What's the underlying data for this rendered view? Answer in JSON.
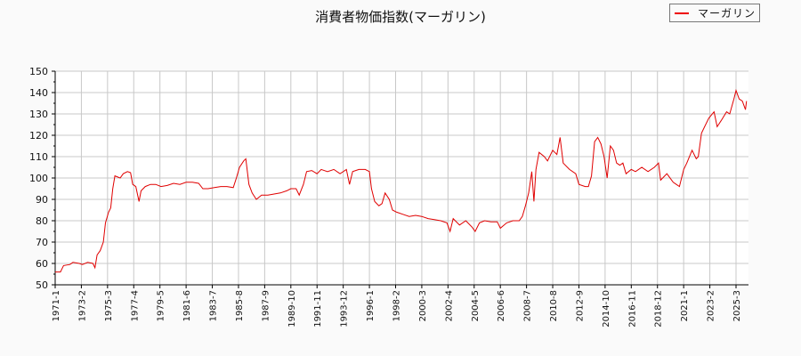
{
  "title": "消費者物価指数(マーガリン)",
  "legend": {
    "label": "マーガリン",
    "color": "#e00000"
  },
  "chart_data": {
    "type": "line",
    "title": "消費者物価指数(マーガリン)",
    "xlabel": "",
    "ylabel": "",
    "ylim": [
      50,
      150
    ],
    "yticks": [
      50,
      60,
      70,
      80,
      90,
      100,
      110,
      120,
      130,
      140,
      150
    ],
    "xtick_labels": [
      "1971-1",
      "1973-2",
      "1975-3",
      "1977-4",
      "1979-5",
      "1981-6",
      "1983-7",
      "1985-8",
      "1987-9",
      "1989-10",
      "1991-11",
      "1993-12",
      "1996-1",
      "1998-2",
      "2000-3",
      "2002-4",
      "2004-5",
      "2006-6",
      "2008-7",
      "2010-8",
      "2012-9",
      "2014-10",
      "2016-11",
      "2018-12",
      "2021-1",
      "2023-2",
      "2025-3"
    ],
    "grid": true,
    "legend_position": "top-right",
    "series": [
      {
        "name": "マーガリン",
        "color": "#e00000",
        "points": [
          [
            "1971-1",
            56
          ],
          [
            "1971-6",
            56
          ],
          [
            "1971-9",
            59
          ],
          [
            "1972-3",
            59.5
          ],
          [
            "1972-6",
            60.5
          ],
          [
            "1972-12",
            60
          ],
          [
            "1973-3",
            59.5
          ],
          [
            "1973-8",
            60.5
          ],
          [
            "1974-1",
            60
          ],
          [
            "1974-3",
            58
          ],
          [
            "1974-5",
            64
          ],
          [
            "1974-8",
            66
          ],
          [
            "1974-11",
            70
          ],
          [
            "1975-1",
            79
          ],
          [
            "1975-4",
            84
          ],
          [
            "1975-6",
            86
          ],
          [
            "1975-8",
            95
          ],
          [
            "1975-10",
            101
          ],
          [
            "1976-3",
            100
          ],
          [
            "1976-6",
            102
          ],
          [
            "1976-10",
            103
          ],
          [
            "1977-1",
            102.5
          ],
          [
            "1977-3",
            97
          ],
          [
            "1977-6",
            96
          ],
          [
            "1977-9",
            89
          ],
          [
            "1977-11",
            94
          ],
          [
            "1978-3",
            96
          ],
          [
            "1978-8",
            97
          ],
          [
            "1979-1",
            97
          ],
          [
            "1979-6",
            96
          ],
          [
            "1979-12",
            96.5
          ],
          [
            "1980-6",
            97.5
          ],
          [
            "1980-12",
            97
          ],
          [
            "1981-6",
            98
          ],
          [
            "1981-12",
            98
          ],
          [
            "1982-6",
            97.5
          ],
          [
            "1982-10",
            95
          ],
          [
            "1983-3",
            95
          ],
          [
            "1983-9",
            95.5
          ],
          [
            "1984-3",
            96
          ],
          [
            "1984-9",
            96
          ],
          [
            "1985-3",
            95.5
          ],
          [
            "1985-6",
            100
          ],
          [
            "1985-9",
            105
          ],
          [
            "1986-1",
            108
          ],
          [
            "1986-3",
            109
          ],
          [
            "1986-6",
            97
          ],
          [
            "1986-9",
            93
          ],
          [
            "1987-1",
            90
          ],
          [
            "1987-6",
            92
          ],
          [
            "1987-12",
            92
          ],
          [
            "1988-6",
            92.5
          ],
          [
            "1988-12",
            93
          ],
          [
            "1989-6",
            94
          ],
          [
            "1989-10",
            95
          ],
          [
            "1990-3",
            95
          ],
          [
            "1990-6",
            92
          ],
          [
            "1990-10",
            97
          ],
          [
            "1991-1",
            103
          ],
          [
            "1991-6",
            103.5
          ],
          [
            "1991-11",
            102
          ],
          [
            "1992-3",
            104
          ],
          [
            "1992-9",
            103
          ],
          [
            "1993-3",
            104
          ],
          [
            "1993-9",
            102
          ],
          [
            "1994-3",
            104
          ],
          [
            "1994-6",
            97
          ],
          [
            "1994-9",
            103
          ],
          [
            "1995-3",
            104
          ],
          [
            "1995-9",
            104
          ],
          [
            "1996-1",
            103
          ],
          [
            "1996-3",
            95
          ],
          [
            "1996-6",
            89
          ],
          [
            "1996-10",
            87
          ],
          [
            "1997-1",
            88
          ],
          [
            "1997-4",
            93
          ],
          [
            "1997-8",
            90
          ],
          [
            "1997-11",
            85
          ],
          [
            "1998-3",
            84
          ],
          [
            "1998-9",
            83
          ],
          [
            "1999-3",
            82
          ],
          [
            "1999-9",
            82.5
          ],
          [
            "2000-3",
            82
          ],
          [
            "2000-9",
            81
          ],
          [
            "2001-3",
            80.5
          ],
          [
            "2001-9",
            80
          ],
          [
            "2002-3",
            79
          ],
          [
            "2002-6",
            75
          ],
          [
            "2002-9",
            81
          ],
          [
            "2003-3",
            78
          ],
          [
            "2003-9",
            80
          ],
          [
            "2004-3",
            77
          ],
          [
            "2004-6",
            75
          ],
          [
            "2004-10",
            79
          ],
          [
            "2005-3",
            80
          ],
          [
            "2005-9",
            79.5
          ],
          [
            "2006-3",
            79.5
          ],
          [
            "2006-6",
            76.5
          ],
          [
            "2006-12",
            79
          ],
          [
            "2007-6",
            80
          ],
          [
            "2007-12",
            80
          ],
          [
            "2008-3",
            82
          ],
          [
            "2008-6",
            87
          ],
          [
            "2008-9",
            93
          ],
          [
            "2008-12",
            103
          ],
          [
            "2009-2",
            89
          ],
          [
            "2009-4",
            104
          ],
          [
            "2009-7",
            112
          ],
          [
            "2009-12",
            110
          ],
          [
            "2010-3",
            108
          ],
          [
            "2010-8",
            113
          ],
          [
            "2010-12",
            111
          ],
          [
            "2011-3",
            119
          ],
          [
            "2011-6",
            107
          ],
          [
            "2011-12",
            104
          ],
          [
            "2012-6",
            102
          ],
          [
            "2012-9",
            97
          ],
          [
            "2013-3",
            96
          ],
          [
            "2013-6",
            96
          ],
          [
            "2013-9",
            101
          ],
          [
            "2013-12",
            117
          ],
          [
            "2014-3",
            119
          ],
          [
            "2014-6",
            116
          ],
          [
            "2014-9",
            110
          ],
          [
            "2014-12",
            100
          ],
          [
            "2015-3",
            115
          ],
          [
            "2015-6",
            113
          ],
          [
            "2015-9",
            107
          ],
          [
            "2015-12",
            106
          ],
          [
            "2016-3",
            107
          ],
          [
            "2016-6",
            102
          ],
          [
            "2016-11",
            104
          ],
          [
            "2017-3",
            103
          ],
          [
            "2017-9",
            105
          ],
          [
            "2018-3",
            103
          ],
          [
            "2018-9",
            105
          ],
          [
            "2019-1",
            107
          ],
          [
            "2019-3",
            99
          ],
          [
            "2019-9",
            102
          ],
          [
            "2020-3",
            98
          ],
          [
            "2020-6",
            97
          ],
          [
            "2020-9",
            96
          ],
          [
            "2021-1",
            104
          ],
          [
            "2021-4",
            107
          ],
          [
            "2021-9",
            113
          ],
          [
            "2022-1",
            109
          ],
          [
            "2022-3",
            110
          ],
          [
            "2022-6",
            121
          ],
          [
            "2022-9",
            124
          ],
          [
            "2023-1",
            128
          ],
          [
            "2023-6",
            131
          ],
          [
            "2023-9",
            124
          ],
          [
            "2024-1",
            127
          ],
          [
            "2024-6",
            131
          ],
          [
            "2024-9",
            130
          ],
          [
            "2025-1",
            137
          ],
          [
            "2025-3",
            141
          ],
          [
            "2025-6",
            137
          ],
          [
            "2025-9",
            136
          ],
          [
            "2025-12",
            132
          ],
          [
            "2026-1",
            136
          ]
        ]
      }
    ]
  }
}
